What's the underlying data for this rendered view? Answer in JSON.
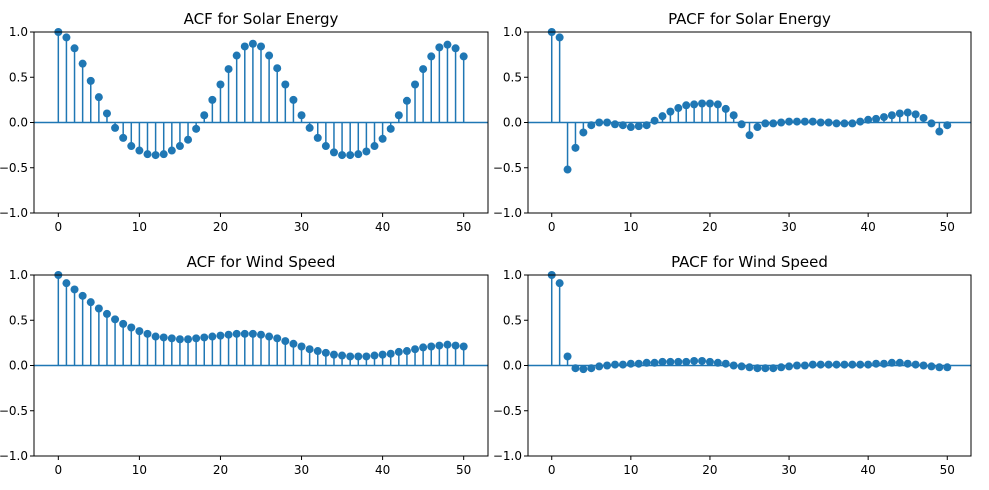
{
  "chart_data": [
    {
      "type": "stem",
      "title": "ACF for Solar Energy",
      "xlabel": "",
      "ylabel": "",
      "xlim": [
        -3,
        53
      ],
      "ylim": [
        -1.0,
        1.0
      ],
      "x_ticks": [
        0,
        10,
        20,
        30,
        40,
        50
      ],
      "y_ticks": [
        "1.0",
        "0.5",
        "0.0",
        "−0.5",
        "−1.0"
      ],
      "y_tick_values": [
        1.0,
        0.5,
        0.0,
        -0.5,
        -1.0
      ],
      "grid": false,
      "color": "#1f77b4",
      "x": [
        0,
        1,
        2,
        3,
        4,
        5,
        6,
        7,
        8,
        9,
        10,
        11,
        12,
        13,
        14,
        15,
        16,
        17,
        18,
        19,
        20,
        21,
        22,
        23,
        24,
        25,
        26,
        27,
        28,
        29,
        30,
        31,
        32,
        33,
        34,
        35,
        36,
        37,
        38,
        39,
        40,
        41,
        42,
        43,
        44,
        45,
        46,
        47,
        48,
        49,
        50
      ],
      "values": [
        1.0,
        0.94,
        0.82,
        0.65,
        0.46,
        0.28,
        0.1,
        -0.06,
        -0.17,
        -0.26,
        -0.31,
        -0.35,
        -0.36,
        -0.35,
        -0.31,
        -0.26,
        -0.19,
        -0.07,
        0.08,
        0.25,
        0.42,
        0.59,
        0.74,
        0.84,
        0.87,
        0.84,
        0.74,
        0.6,
        0.42,
        0.25,
        0.08,
        -0.06,
        -0.17,
        -0.26,
        -0.33,
        -0.36,
        -0.36,
        -0.35,
        -0.32,
        -0.26,
        -0.18,
        -0.07,
        0.08,
        0.24,
        0.42,
        0.59,
        0.73,
        0.83,
        0.86,
        0.82,
        0.73
      ]
    },
    {
      "type": "stem",
      "title": "PACF for Solar Energy",
      "xlabel": "",
      "ylabel": "",
      "xlim": [
        -3,
        53
      ],
      "ylim": [
        -1.0,
        1.0
      ],
      "x_ticks": [
        0,
        10,
        20,
        30,
        40,
        50
      ],
      "y_ticks": [
        "1.0",
        "0.5",
        "0.0",
        "−0.5",
        "−1.0"
      ],
      "y_tick_values": [
        1.0,
        0.5,
        0.0,
        -0.5,
        -1.0
      ],
      "grid": false,
      "color": "#1f77b4",
      "x": [
        0,
        1,
        2,
        3,
        4,
        5,
        6,
        7,
        8,
        9,
        10,
        11,
        12,
        13,
        14,
        15,
        16,
        17,
        18,
        19,
        20,
        21,
        22,
        23,
        24,
        25,
        26,
        27,
        28,
        29,
        30,
        31,
        32,
        33,
        34,
        35,
        36,
        37,
        38,
        39,
        40,
        41,
        42,
        43,
        44,
        45,
        46,
        47,
        48,
        49,
        50
      ],
      "values": [
        1.0,
        0.94,
        -0.52,
        -0.28,
        -0.11,
        -0.03,
        0.0,
        0.0,
        -0.02,
        -0.03,
        -0.05,
        -0.04,
        -0.03,
        0.02,
        0.07,
        0.12,
        0.16,
        0.19,
        0.2,
        0.21,
        0.21,
        0.2,
        0.15,
        0.08,
        -0.02,
        -0.14,
        -0.05,
        -0.01,
        -0.01,
        0.0,
        0.01,
        0.01,
        0.01,
        0.01,
        0.0,
        0.0,
        -0.01,
        -0.01,
        -0.01,
        0.01,
        0.03,
        0.04,
        0.06,
        0.08,
        0.1,
        0.11,
        0.09,
        0.05,
        -0.01,
        -0.1,
        -0.03
      ]
    },
    {
      "type": "stem",
      "title": "ACF for Wind Speed",
      "xlabel": "",
      "ylabel": "",
      "xlim": [
        -3,
        53
      ],
      "ylim": [
        -1.0,
        1.0
      ],
      "x_ticks": [
        0,
        10,
        20,
        30,
        40,
        50
      ],
      "y_ticks": [
        "1.0",
        "0.5",
        "0.0",
        "−0.5",
        "−1.0"
      ],
      "y_tick_values": [
        1.0,
        0.5,
        0.0,
        -0.5,
        -1.0
      ],
      "grid": false,
      "color": "#1f77b4",
      "x": [
        0,
        1,
        2,
        3,
        4,
        5,
        6,
        7,
        8,
        9,
        10,
        11,
        12,
        13,
        14,
        15,
        16,
        17,
        18,
        19,
        20,
        21,
        22,
        23,
        24,
        25,
        26,
        27,
        28,
        29,
        30,
        31,
        32,
        33,
        34,
        35,
        36,
        37,
        38,
        39,
        40,
        41,
        42,
        43,
        44,
        45,
        46,
        47,
        48,
        49,
        50
      ],
      "values": [
        1.0,
        0.91,
        0.84,
        0.77,
        0.7,
        0.63,
        0.57,
        0.51,
        0.46,
        0.42,
        0.38,
        0.35,
        0.32,
        0.31,
        0.3,
        0.29,
        0.29,
        0.3,
        0.31,
        0.32,
        0.33,
        0.34,
        0.35,
        0.35,
        0.35,
        0.34,
        0.32,
        0.3,
        0.27,
        0.24,
        0.21,
        0.18,
        0.16,
        0.14,
        0.12,
        0.11,
        0.1,
        0.1,
        0.1,
        0.11,
        0.12,
        0.13,
        0.15,
        0.16,
        0.18,
        0.2,
        0.21,
        0.22,
        0.23,
        0.22,
        0.21
      ]
    },
    {
      "type": "stem",
      "title": "PACF for Wind Speed",
      "xlabel": "",
      "ylabel": "",
      "xlim": [
        -3,
        53
      ],
      "ylim": [
        -1.0,
        1.0
      ],
      "x_ticks": [
        0,
        10,
        20,
        30,
        40,
        50
      ],
      "y_ticks": [
        "1.0",
        "0.5",
        "0.0",
        "−0.5",
        "−1.0"
      ],
      "y_tick_values": [
        1.0,
        0.5,
        0.0,
        -0.5,
        -1.0
      ],
      "grid": false,
      "color": "#1f77b4",
      "x": [
        0,
        1,
        2,
        3,
        4,
        5,
        6,
        7,
        8,
        9,
        10,
        11,
        12,
        13,
        14,
        15,
        16,
        17,
        18,
        19,
        20,
        21,
        22,
        23,
        24,
        25,
        26,
        27,
        28,
        29,
        30,
        31,
        32,
        33,
        34,
        35,
        36,
        37,
        38,
        39,
        40,
        41,
        42,
        43,
        44,
        45,
        46,
        47,
        48,
        49,
        50
      ],
      "values": [
        1.0,
        0.91,
        0.1,
        -0.03,
        -0.04,
        -0.03,
        -0.01,
        0.0,
        0.01,
        0.01,
        0.02,
        0.02,
        0.03,
        0.03,
        0.04,
        0.04,
        0.04,
        0.04,
        0.05,
        0.05,
        0.04,
        0.03,
        0.02,
        0.0,
        -0.01,
        -0.02,
        -0.03,
        -0.03,
        -0.03,
        -0.02,
        -0.01,
        0.0,
        0.0,
        0.01,
        0.01,
        0.01,
        0.01,
        0.01,
        0.01,
        0.01,
        0.01,
        0.02,
        0.02,
        0.03,
        0.03,
        0.02,
        0.01,
        0.0,
        -0.01,
        -0.02,
        -0.02
      ]
    }
  ]
}
